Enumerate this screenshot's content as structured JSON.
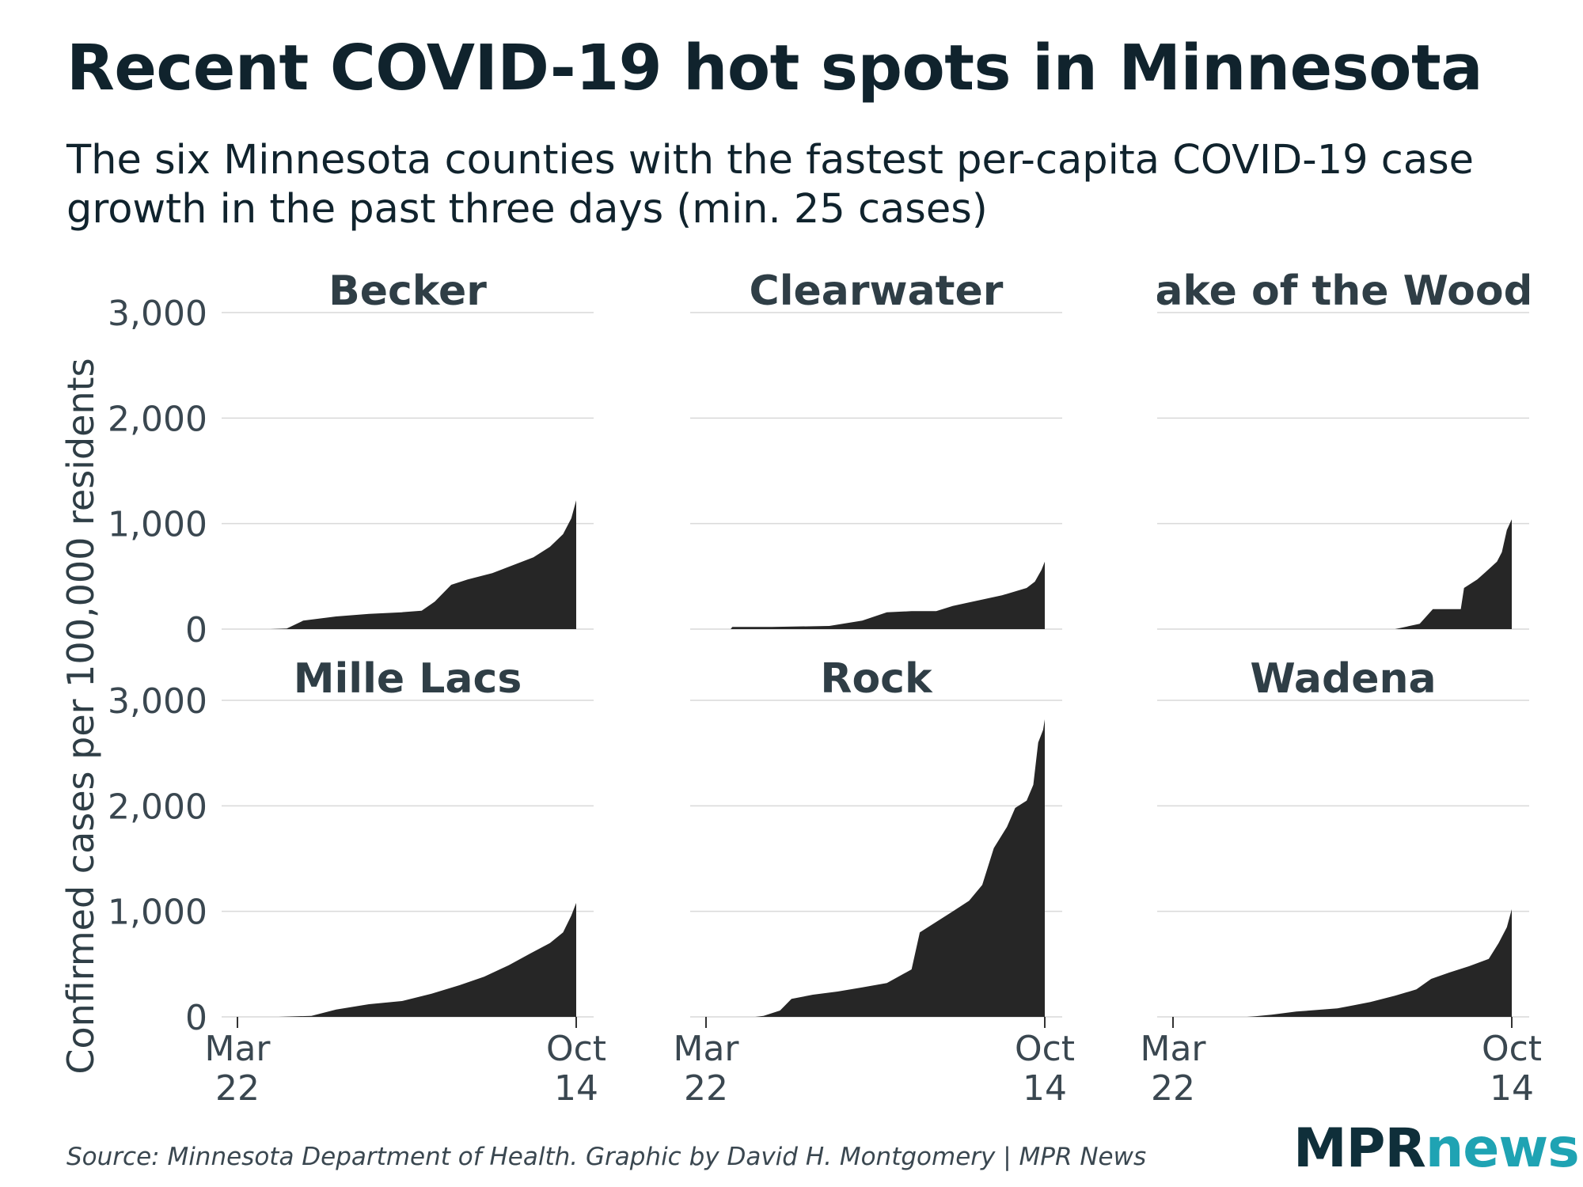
{
  "title": "Recent COVID-19 hot spots in Minnesota",
  "subtitle": "The six Minnesota counties with the fastest per-capita COVID-19 case growth in the past three days (min. 25 cases)",
  "source": "Source: Minnesota Department of Health. Graphic by David H. Montgomery | MPR News",
  "brand": {
    "part1": "MPR",
    "part2": "news"
  },
  "colors": {
    "fill": "#262626",
    "grid": "#d9d9d9",
    "facet_title": "#2f3e46",
    "axis_text": "#3a4750",
    "brand_dark": "#0f2f3a",
    "brand_teal": "#1fa3b3"
  },
  "chart_data": {
    "type": "area",
    "ylabel": "Confirmed cases per 100,000 residents",
    "ylim": [
      0,
      3000
    ],
    "yticks": [
      0,
      1000,
      2000,
      3000
    ],
    "ytick_labels": [
      "0",
      "1,000",
      "2,000",
      "3,000"
    ],
    "xlim": [
      0,
      206
    ],
    "xticks": [
      {
        "day": 0,
        "line1": "Mar",
        "line2": "22"
      },
      {
        "day": 206,
        "line1": "Oct",
        "line2": "14"
      }
    ],
    "x_unit": "days since Mar 22",
    "panels": [
      {
        "name": "Becker",
        "points": [
          [
            20,
            0
          ],
          [
            30,
            5
          ],
          [
            40,
            80
          ],
          [
            60,
            120
          ],
          [
            80,
            145
          ],
          [
            100,
            160
          ],
          [
            112,
            175
          ],
          [
            120,
            260
          ],
          [
            130,
            420
          ],
          [
            140,
            470
          ],
          [
            155,
            530
          ],
          [
            165,
            590
          ],
          [
            180,
            680
          ],
          [
            190,
            780
          ],
          [
            198,
            900
          ],
          [
            203,
            1050
          ],
          [
            206,
            1220
          ]
        ]
      },
      {
        "name": "Clearwater",
        "points": [
          [
            15,
            0
          ],
          [
            16,
            20
          ],
          [
            40,
            20
          ],
          [
            75,
            30
          ],
          [
            95,
            80
          ],
          [
            110,
            160
          ],
          [
            125,
            170
          ],
          [
            140,
            170
          ],
          [
            150,
            220
          ],
          [
            165,
            270
          ],
          [
            180,
            320
          ],
          [
            195,
            390
          ],
          [
            200,
            450
          ],
          [
            204,
            560
          ],
          [
            206,
            640
          ]
        ]
      },
      {
        "name": "Lake of the Woods",
        "points": [
          [
            135,
            0
          ],
          [
            150,
            50
          ],
          [
            158,
            190
          ],
          [
            175,
            190
          ],
          [
            177,
            390
          ],
          [
            185,
            470
          ],
          [
            190,
            540
          ],
          [
            197,
            640
          ],
          [
            200,
            730
          ],
          [
            203,
            940
          ],
          [
            206,
            1040
          ]
        ]
      },
      {
        "name": "Mille Lacs",
        "points": [
          [
            25,
            0
          ],
          [
            45,
            10
          ],
          [
            60,
            70
          ],
          [
            80,
            120
          ],
          [
            100,
            150
          ],
          [
            118,
            220
          ],
          [
            135,
            300
          ],
          [
            150,
            380
          ],
          [
            165,
            490
          ],
          [
            178,
            600
          ],
          [
            190,
            700
          ],
          [
            198,
            800
          ],
          [
            203,
            960
          ],
          [
            206,
            1080
          ]
        ]
      },
      {
        "name": "Rock",
        "points": [
          [
            30,
            0
          ],
          [
            35,
            10
          ],
          [
            45,
            60
          ],
          [
            52,
            170
          ],
          [
            65,
            210
          ],
          [
            80,
            240
          ],
          [
            95,
            280
          ],
          [
            110,
            320
          ],
          [
            125,
            450
          ],
          [
            130,
            800
          ],
          [
            140,
            900
          ],
          [
            150,
            1000
          ],
          [
            160,
            1100
          ],
          [
            168,
            1250
          ],
          [
            175,
            1600
          ],
          [
            183,
            1800
          ],
          [
            188,
            1980
          ],
          [
            195,
            2050
          ],
          [
            199,
            2200
          ],
          [
            202,
            2600
          ],
          [
            205,
            2720
          ],
          [
            206,
            2820
          ]
        ]
      },
      {
        "name": "Wadena",
        "points": [
          [
            45,
            0
          ],
          [
            50,
            5
          ],
          [
            60,
            20
          ],
          [
            75,
            50
          ],
          [
            100,
            80
          ],
          [
            120,
            140
          ],
          [
            135,
            200
          ],
          [
            148,
            260
          ],
          [
            157,
            360
          ],
          [
            168,
            420
          ],
          [
            180,
            480
          ],
          [
            192,
            550
          ],
          [
            198,
            700
          ],
          [
            203,
            850
          ],
          [
            206,
            1020
          ]
        ]
      }
    ]
  }
}
